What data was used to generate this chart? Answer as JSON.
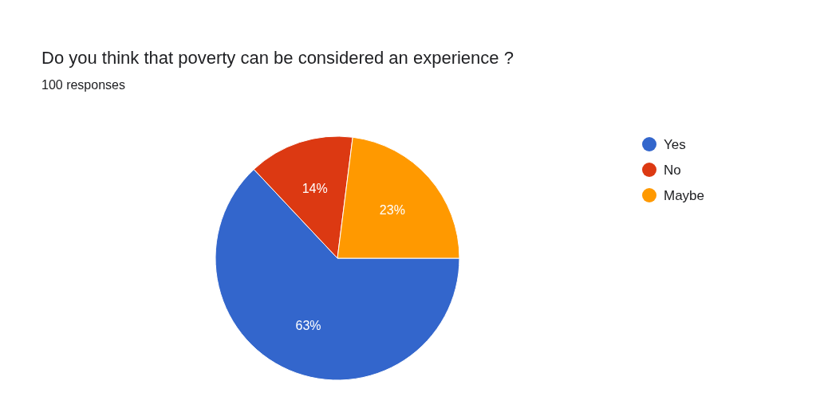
{
  "chart_data": {
    "type": "pie",
    "title": "Do you think that poverty can be considered an experience ?",
    "subtitle": "100 responses",
    "categories": [
      "Yes",
      "No",
      "Maybe"
    ],
    "values": [
      63,
      14,
      23
    ],
    "colors": [
      "#3366cc",
      "#dc3912",
      "#ff9900"
    ],
    "value_labels": [
      "63%",
      "14%",
      "23%"
    ],
    "legend": "right"
  }
}
